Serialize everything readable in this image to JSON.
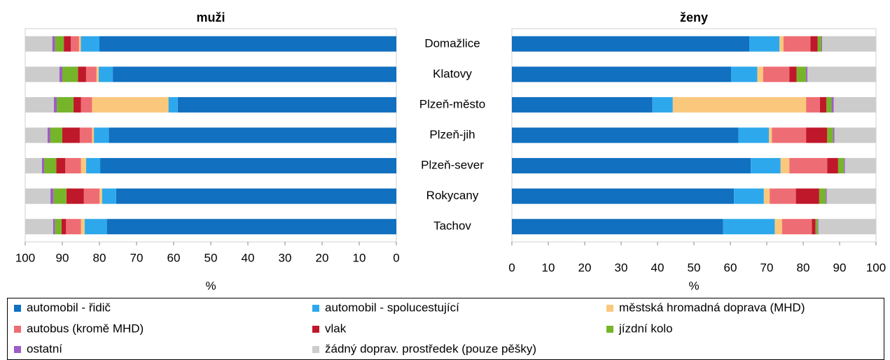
{
  "chart_data": [
    {
      "type": "bar",
      "orientation": "horizontal",
      "stacked": true,
      "title": "muži",
      "xlabel": "%",
      "categories": [
        "Domažlice",
        "Klatovy",
        "Plzeň-město",
        "Plzeň-jih",
        "Plzeň-sever",
        "Rokycany",
        "Tachov"
      ],
      "xlim": [
        100,
        0
      ],
      "xticks": [
        100,
        90,
        80,
        70,
        60,
        50,
        40,
        30,
        20,
        10,
        0
      ],
      "series": [
        {
          "name": "automobil - řidič",
          "color": "#1170bf",
          "values": [
            80,
            76.4,
            58.9,
            77.5,
            79.8,
            75.5,
            78
          ]
        },
        {
          "name": "automobil - spolucestující",
          "color": "#2ea8ec",
          "values": [
            5,
            3.8,
            2.5,
            4,
            3.8,
            3.8,
            6
          ]
        },
        {
          "name": "městská hromadná doprava (MHD)",
          "color": "#fac87d",
          "values": [
            0.5,
            0.6,
            20.6,
            0.5,
            1.4,
            0.7,
            1
          ]
        },
        {
          "name": "autobus (kromě MHD)",
          "color": "#ee6d74",
          "values": [
            2.2,
            2.8,
            3,
            3.3,
            4.2,
            4.2,
            4
          ]
        },
        {
          "name": "vlak",
          "color": "#c0182b",
          "values": [
            1.9,
            2.2,
            2,
            4.7,
            2.4,
            4.7,
            1.2
          ]
        },
        {
          "name": "jízdní kolo",
          "color": "#76b52a",
          "values": [
            2.4,
            4.2,
            4.5,
            3.3,
            3.3,
            3.5,
            1.8
          ]
        },
        {
          "name": "ostatní",
          "color": "#9e5cc6",
          "values": [
            0.7,
            0.8,
            0.8,
            0.7,
            0.6,
            0.8,
            0.5
          ]
        },
        {
          "name": "žádný doprav. prostředek (pouze pěšky)",
          "color": "#cccccc",
          "values": [
            7.3,
            9.2,
            7.7,
            6,
            4.5,
            6.8,
            7.5
          ]
        }
      ]
    },
    {
      "type": "bar",
      "orientation": "horizontal",
      "stacked": true,
      "title": "ženy",
      "xlabel": "%",
      "xlim": [
        0,
        100
      ],
      "xticks": [
        0,
        10,
        20,
        30,
        40,
        50,
        60,
        70,
        80,
        90,
        100
      ],
      "series": [
        {
          "color": "#1170bf",
          "values": [
            65.2,
            60.2,
            38.6,
            62.2,
            65.6,
            61,
            58
          ]
        },
        {
          "color": "#2ea8ec",
          "values": [
            8.3,
            7.2,
            5.6,
            8.4,
            8.2,
            8.2,
            14.2
          ]
        },
        {
          "color": "#fac87d",
          "values": [
            1.1,
            1.6,
            36.6,
            0.8,
            2.4,
            1.6,
            2
          ]
        },
        {
          "color": "#ee6d74",
          "values": [
            7.4,
            7.2,
            3.8,
            9.4,
            10.4,
            7.2,
            8.2
          ]
        },
        {
          "color": "#c0182b",
          "values": [
            2,
            2,
            1.8,
            5.8,
            3,
            6.4,
            1
          ]
        },
        {
          "color": "#76b52a",
          "values": [
            1,
            2.6,
            1.4,
            1.6,
            1.6,
            1.8,
            0.6
          ]
        },
        {
          "color": "#9e5cc6",
          "values": [
            0.2,
            0.4,
            0.6,
            0.4,
            0.3,
            0.3,
            0.2
          ]
        },
        {
          "color": "#cccccc",
          "values": [
            14.8,
            18.8,
            11.6,
            11.4,
            8.5,
            13.5,
            15.8
          ]
        }
      ]
    }
  ]
}
